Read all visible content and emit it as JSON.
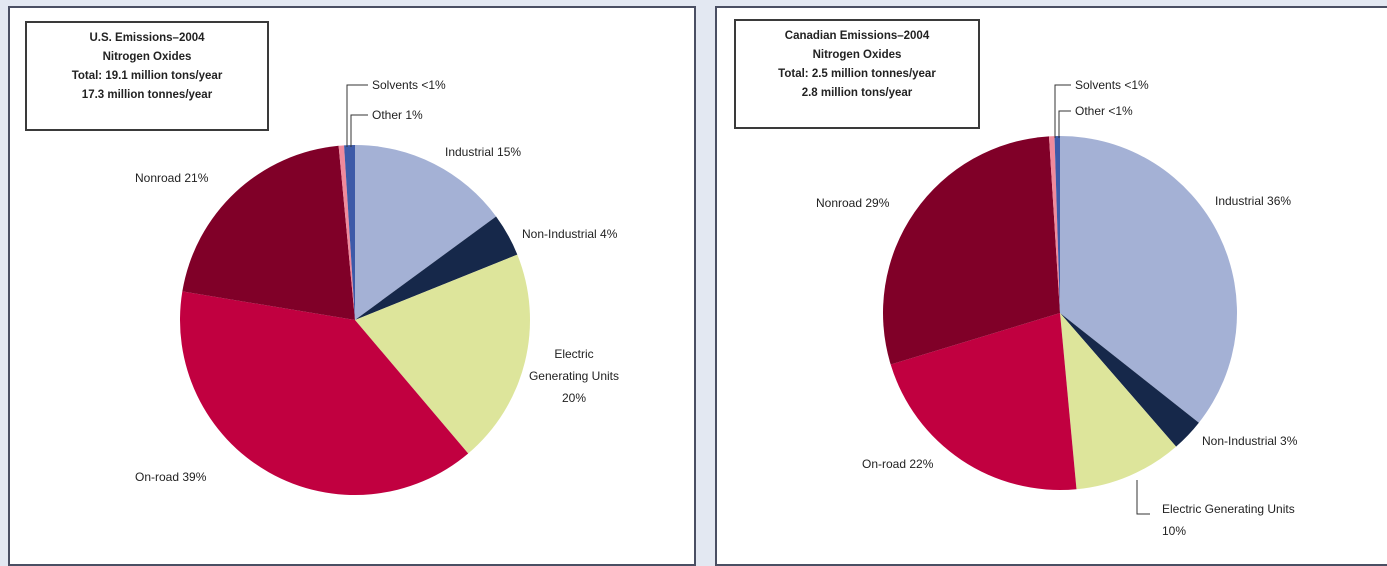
{
  "chart_data": [
    {
      "type": "pie",
      "title": "U.S. Emissions–2004",
      "subtitle": "Nitrogen Oxides",
      "totals": [
        "Total: 19.1 million tons/year",
        "17.3 million tonnes/year"
      ],
      "categories": [
        "Industrial",
        "Non-Industrial",
        "Electric Generating Units",
        "On-road",
        "Nonroad",
        "Solvents",
        "Other"
      ],
      "values": [
        15,
        4,
        20,
        39,
        21,
        0.5,
        1
      ],
      "value_labels": [
        "15%",
        "4%",
        "20%",
        "39%",
        "21%",
        "<1%",
        "1%"
      ],
      "colors": [
        "#a4b1d5",
        "#16284a",
        "#dde59b",
        "#c10040",
        "#800028",
        "#f08a9c",
        "#3d5aa8"
      ]
    },
    {
      "type": "pie",
      "title": "Canadian Emissions–2004",
      "subtitle": "Nitrogen Oxides",
      "totals": [
        "Total: 2.5 million tonnes/year",
        "2.8 million tons/year"
      ],
      "categories": [
        "Industrial",
        "Non-Industrial",
        "Electric Generating Units",
        "On-road",
        "Nonroad",
        "Solvents",
        "Other"
      ],
      "values": [
        36,
        3,
        10,
        22,
        29,
        0.5,
        0.5
      ],
      "value_labels": [
        "36%",
        "3%",
        "10%",
        "22%",
        "29%",
        "<1%",
        "<1%"
      ],
      "colors": [
        "#a4b1d5",
        "#16284a",
        "#dde59b",
        "#c10040",
        "#800028",
        "#f08a9c",
        "#3d5aa8"
      ]
    }
  ]
}
